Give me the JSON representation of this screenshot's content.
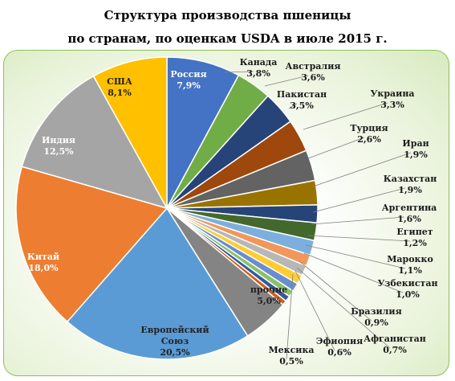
{
  "title_line1": "Структура производства пшеницы",
  "title_line2": "по странам, по оценкам USDA в июле 2015 г.",
  "chart_data": {
    "type": "pie",
    "title": "Структура производства пшеницы по странам, по оценкам USDA в июле 2015 г.",
    "unit": "%",
    "start": "12 o'clock, clockwise",
    "slices": [
      {
        "name": "Россия",
        "value": 7.9,
        "label": "7,9%",
        "color": "#4472c4"
      },
      {
        "name": "Канада",
        "value": 3.8,
        "label": "3,8%",
        "color": "#70ad47"
      },
      {
        "name": "Австралия",
        "value": 3.6,
        "label": "3,6%",
        "color": "#264478"
      },
      {
        "name": "Пакистан",
        "value": 3.5,
        "label": "3,5%",
        "color": "#9e480e"
      },
      {
        "name": "Украина",
        "value": 3.3,
        "label": "3,3%",
        "color": "#636363"
      },
      {
        "name": "Турция",
        "value": 2.6,
        "label": "2,6%",
        "color": "#997300"
      },
      {
        "name": "Иран",
        "value": 1.9,
        "label": "1,9%",
        "color": "#264478"
      },
      {
        "name": "Казахстан",
        "value": 1.9,
        "label": "1,9%",
        "color": "#43682b"
      },
      {
        "name": "Аргентина",
        "value": 1.6,
        "label": "1,6%",
        "color": "#7cafdd"
      },
      {
        "name": "Египет",
        "value": 1.2,
        "label": "1,2%",
        "color": "#f1975a"
      },
      {
        "name": "Марокко",
        "value": 1.1,
        "label": "1,1%",
        "color": "#b7b7b7"
      },
      {
        "name": "Узбекистан",
        "value": 1.0,
        "label": "1,0%",
        "color": "#ffcd33"
      },
      {
        "name": "Бразилия",
        "value": 0.9,
        "label": "0,9%",
        "color": "#698ed0"
      },
      {
        "name": "Афганистан",
        "value": 0.7,
        "label": "0,7%",
        "color": "#8cc168"
      },
      {
        "name": "Эфиопия",
        "value": 0.6,
        "label": "0,6%",
        "color": "#335aa1"
      },
      {
        "name": "Мексика",
        "value": 0.5,
        "label": "0,5%",
        "color": "#d26012"
      },
      {
        "name": "прочие",
        "value": 5.0,
        "label": "5,0%",
        "color": "#848484"
      },
      {
        "name": "Европейский Союз",
        "value": 20.5,
        "label": "20,5%",
        "color": "#5b9bd5"
      },
      {
        "name": "Китай",
        "value": 18.0,
        "label": "18,0%",
        "color": "#ed7d31"
      },
      {
        "name": "Индия",
        "value": 12.5,
        "label": "12,5%",
        "color": "#a5a5a5"
      },
      {
        "name": "США",
        "value": 8.1,
        "label": "8,1%",
        "color": "#ffc000"
      }
    ]
  }
}
